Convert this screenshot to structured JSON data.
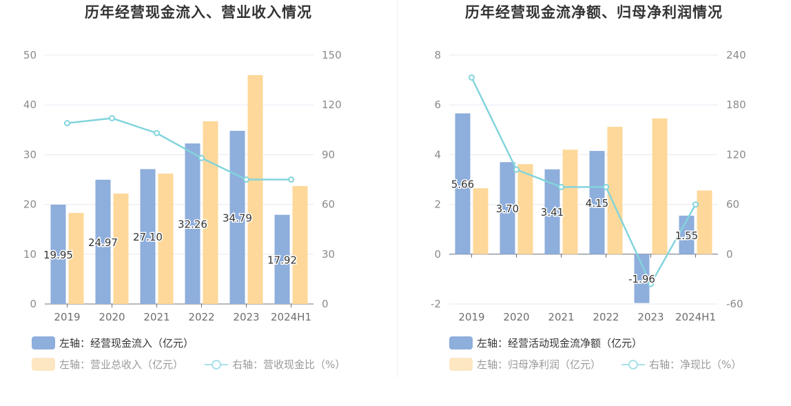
{
  "colors": {
    "bar1": "#8eaedc",
    "bar2": "#fdd89a",
    "line": "#82d4dc",
    "grid": "#e6e9f2"
  },
  "chart_data": [
    {
      "type": "bar",
      "title": "历年经营现金流入、营业收入情况",
      "categories": [
        "2019",
        "2020",
        "2021",
        "2022",
        "2023",
        "2024H1"
      ],
      "series": [
        {
          "name": "左轴：经营现金流入（亿元）",
          "axis": "left",
          "values": [
            19.95,
            24.97,
            27.1,
            32.26,
            34.79,
            17.92
          ]
        },
        {
          "name": "左轴：营业总收入（亿元）",
          "axis": "left",
          "values": [
            18.3,
            22.2,
            26.2,
            36.7,
            46.0,
            23.7
          ]
        },
        {
          "name": "右轴：营收现金比（%）",
          "axis": "right",
          "type": "line",
          "values": [
            109,
            112,
            103,
            88,
            75,
            75
          ]
        }
      ],
      "data_labels": [
        "19.95",
        "24.97",
        "27.10",
        "32.26",
        "34.79",
        "17.92"
      ],
      "left_axis": {
        "min": 0,
        "max": 50,
        "ticks": [
          "0",
          "10",
          "20",
          "30",
          "40",
          "50"
        ]
      },
      "right_axis": {
        "min": 0,
        "max": 150,
        "ticks": [
          "0",
          "30",
          "60",
          "90",
          "120",
          "150"
        ]
      }
    },
    {
      "type": "bar",
      "title": "历年经营现金流净额、归母净利润情况",
      "categories": [
        "2019",
        "2020",
        "2021",
        "2022",
        "2023",
        "2024H1"
      ],
      "series": [
        {
          "name": "左轴：经营活动现金流净额（亿元）",
          "axis": "left",
          "values": [
            5.66,
            3.7,
            3.41,
            4.15,
            -1.96,
            1.55
          ]
        },
        {
          "name": "左轴：归母净利润（亿元）",
          "axis": "left",
          "values": [
            2.65,
            3.62,
            4.2,
            5.12,
            5.46,
            2.56
          ]
        },
        {
          "name": "右轴：净现比（%）",
          "axis": "right",
          "type": "line",
          "values": [
            213,
            102,
            81,
            81,
            -36,
            60
          ]
        }
      ],
      "data_labels": [
        "5.66",
        "3.70",
        "3.41",
        "4.15",
        "-1.96",
        "1.55"
      ],
      "left_axis": {
        "min": -2,
        "max": 8,
        "ticks": [
          "-2",
          "0",
          "2",
          "4",
          "6",
          "8"
        ]
      },
      "right_axis": {
        "min": -60,
        "max": 240,
        "ticks": [
          "-60",
          "0",
          "60",
          "120",
          "180",
          "240"
        ]
      }
    }
  ]
}
